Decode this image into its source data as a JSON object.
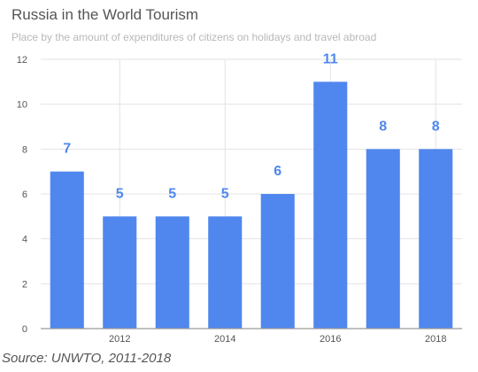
{
  "title": "Russia in the World Tourism",
  "subtitle": "Place by the amount of expenditures of citizens on holidays and travel abroad",
  "source": "Source: UNWTO, 2011-2018",
  "colors": {
    "bar": "#4f87ee",
    "label": "#4f87ee",
    "grid": "#e3e3e3",
    "axis": "#9a9a9a"
  },
  "chart_data": {
    "type": "bar",
    "x": [
      2011,
      2012,
      2013,
      2014,
      2015,
      2016,
      2017,
      2018
    ],
    "values": [
      7,
      5,
      5,
      5,
      6,
      11,
      8,
      8
    ],
    "data_labels": [
      "7",
      "5",
      "5",
      "5",
      "6",
      "11",
      "8",
      "8"
    ],
    "x_tick_labels": [
      "2012",
      "2014",
      "2016",
      "2018"
    ],
    "y_tick_labels": [
      "0",
      "2",
      "4",
      "6",
      "8",
      "10",
      "12"
    ],
    "ylim": [
      0,
      12
    ],
    "grid": true,
    "legend": "none"
  }
}
